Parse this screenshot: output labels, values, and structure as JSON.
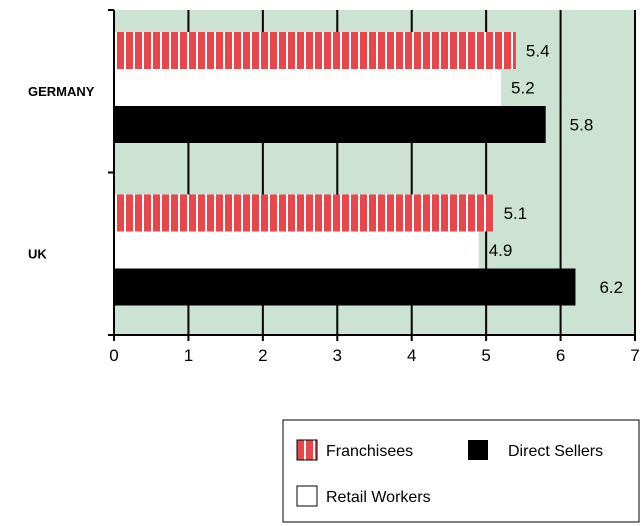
{
  "chart_data": {
    "type": "bar",
    "orientation": "horizontal",
    "categories": [
      "GERMANY",
      "UK"
    ],
    "series": [
      {
        "name": "Franchisees",
        "values": [
          5.4,
          5.1
        ],
        "color": "#e8464b",
        "pattern": "vertical-stripes"
      },
      {
        "name": "Retail Workers",
        "values": [
          5.2,
          4.9
        ],
        "color": "#ffffff"
      },
      {
        "name": "Direct Sellers",
        "values": [
          5.8,
          6.2
        ],
        "color": "#000000"
      }
    ],
    "xlim": [
      0,
      7
    ],
    "xticks": [
      "0",
      "1",
      "2",
      "3",
      "4",
      "5",
      "6",
      "7"
    ],
    "grid": true,
    "background_color": "#cce3d3",
    "legend": {
      "position": "bottom-right",
      "items": [
        "Franchisees",
        "Direct Sellers",
        "Retail Workers"
      ]
    }
  }
}
